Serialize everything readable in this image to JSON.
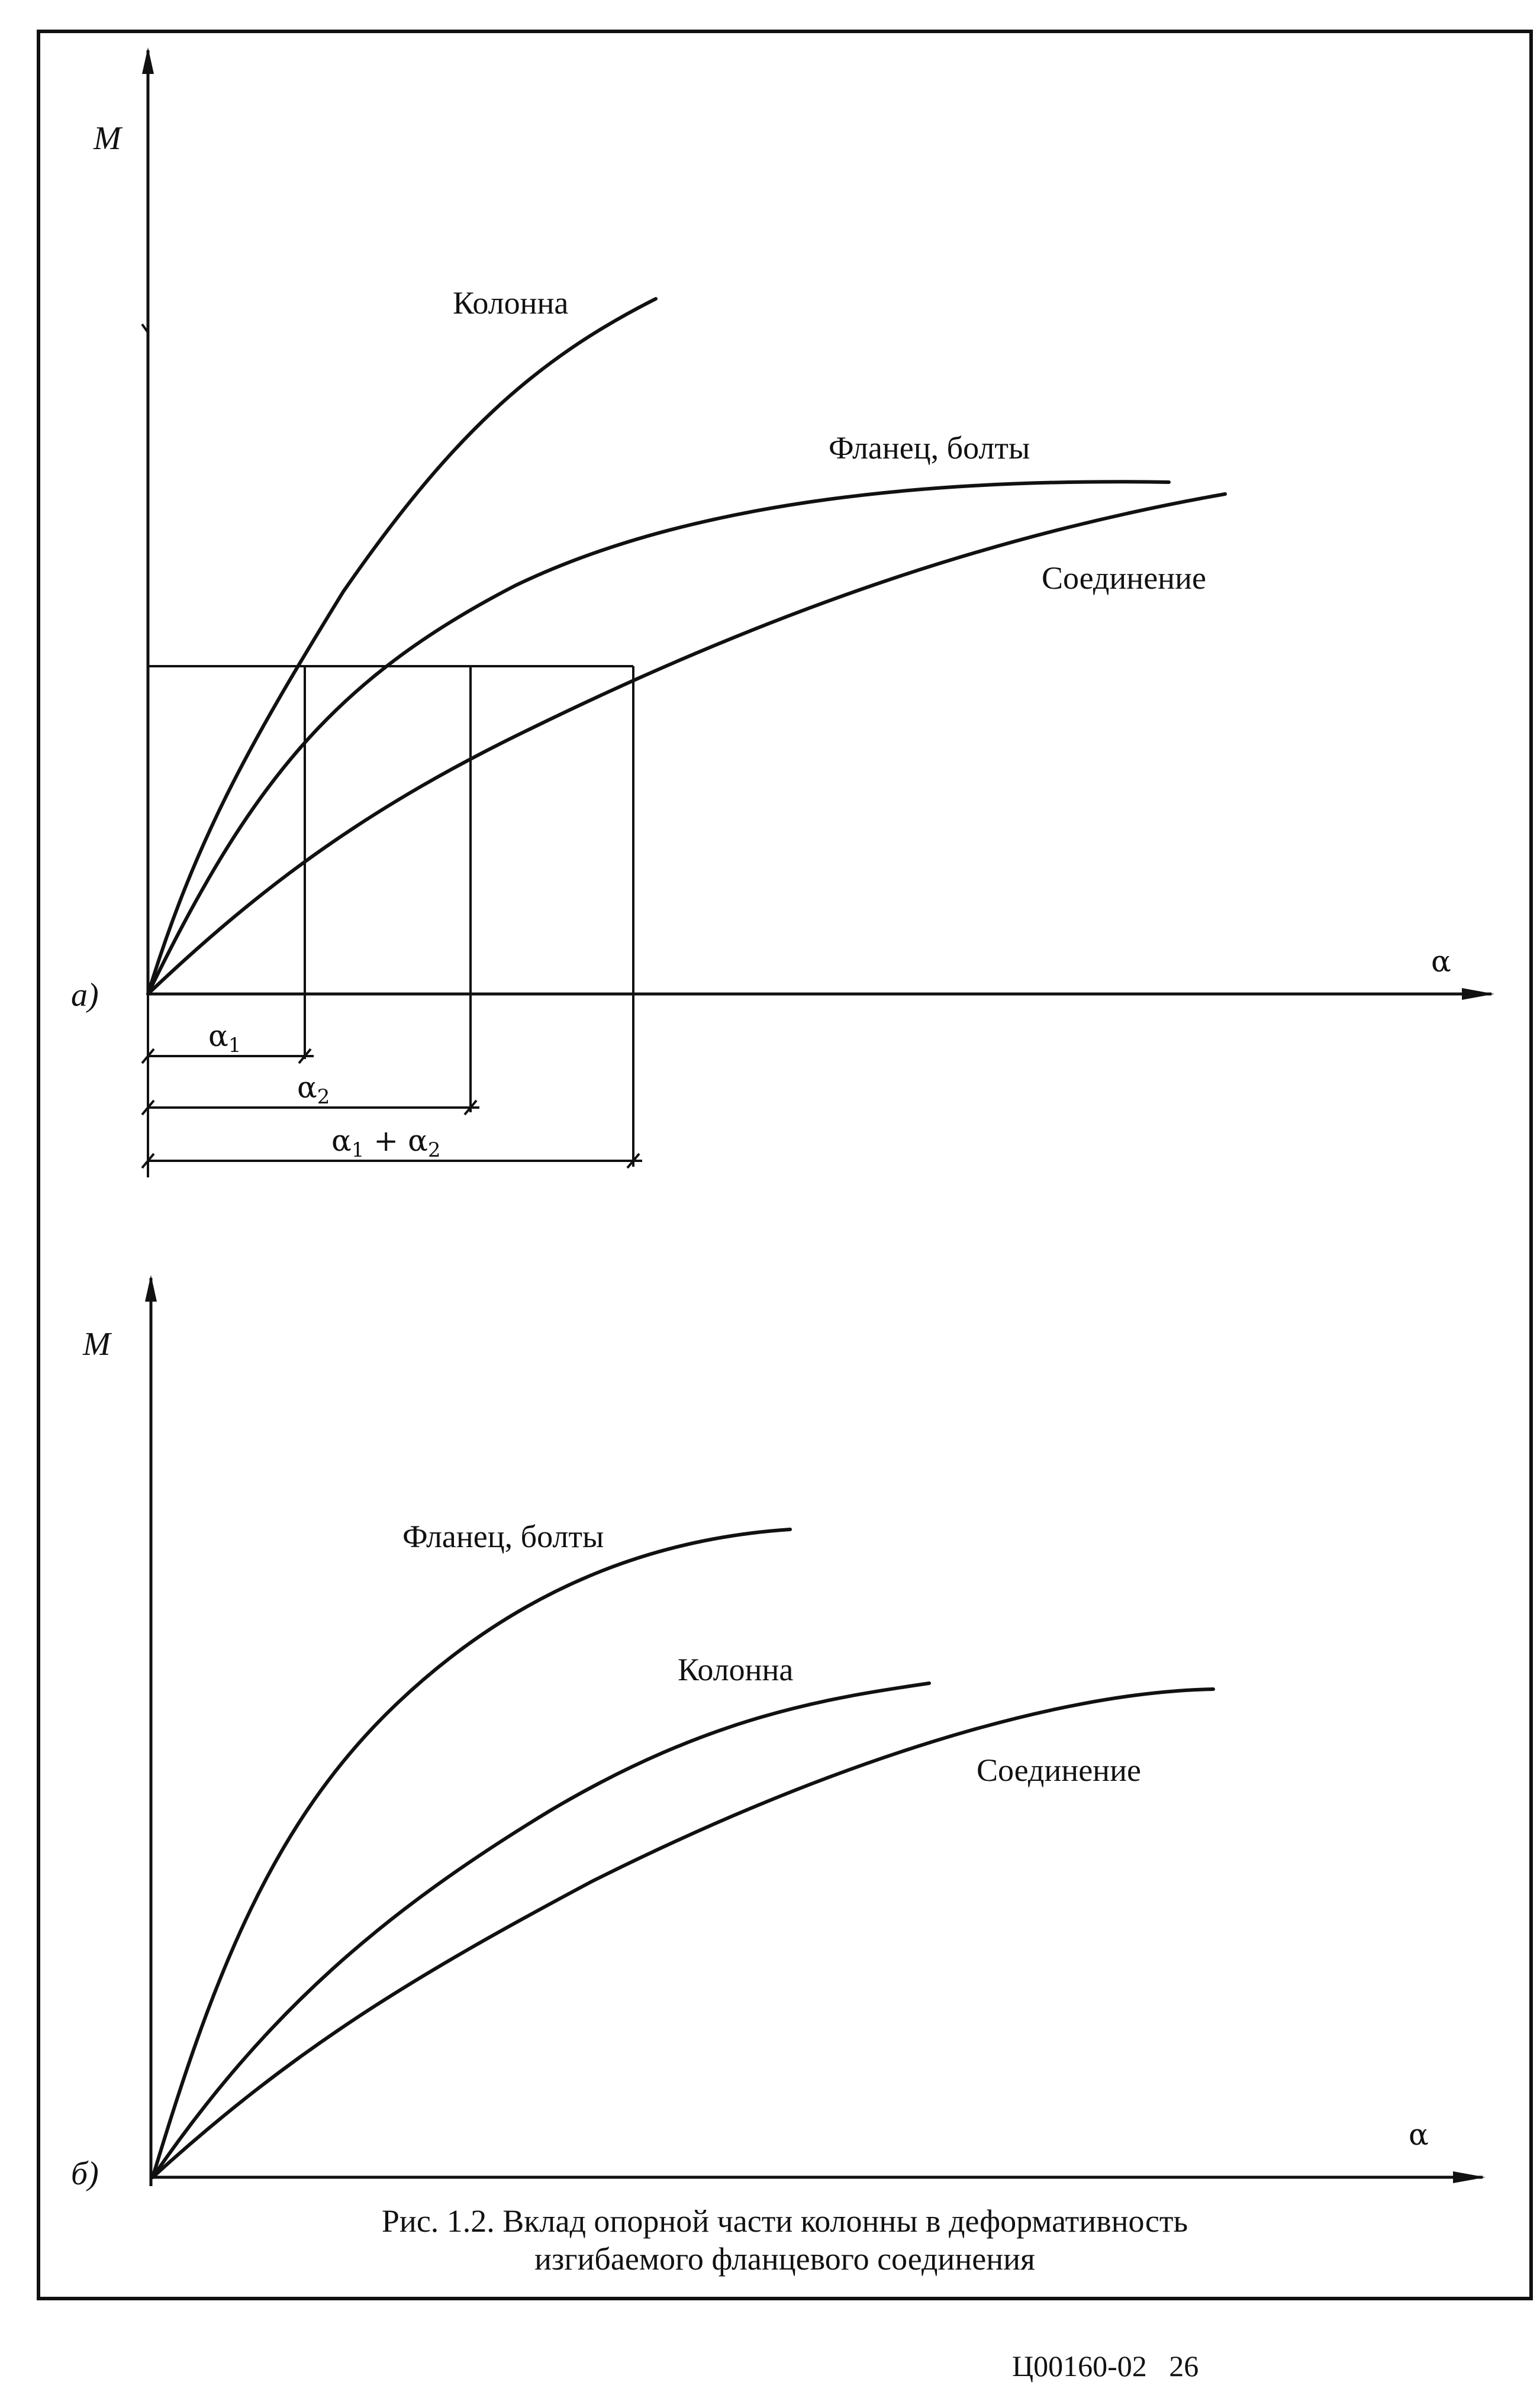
{
  "panel_a": {
    "panel_label": "а)",
    "y_axis_label": "M",
    "x_axis_label": "α",
    "curve_labels": {
      "column": "Колонна",
      "flange_bolts": "Фланец, болты",
      "joint": "Соединение"
    },
    "dimensions": {
      "d1_base": "α",
      "d1_sub": "1",
      "d2_base": "α",
      "d2_sub": "2",
      "sum_a": "α",
      "sum_a_sub": "1",
      "sum_plus": " + ",
      "sum_b": "α",
      "sum_b_sub": "2"
    }
  },
  "panel_b": {
    "panel_label": "б)",
    "y_axis_label": "M",
    "x_axis_label": "α",
    "curve_labels": {
      "flange_bolts": "Фланец, болты",
      "column": "Колонна",
      "joint": "Соединение"
    }
  },
  "caption": {
    "line1": "Рис. 1.2. Вклад опорной части колонны в деформативность",
    "line2": "изгибаемого фланцевого соединения"
  },
  "footer": {
    "doc_code": "Ц00160-02",
    "page_number": "26"
  }
}
